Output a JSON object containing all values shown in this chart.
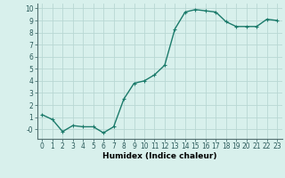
{
  "x": [
    0,
    1,
    2,
    3,
    4,
    5,
    6,
    7,
    8,
    9,
    10,
    11,
    12,
    13,
    14,
    15,
    16,
    17,
    18,
    19,
    20,
    21,
    22,
    23
  ],
  "y": [
    1.2,
    0.8,
    -0.2,
    0.3,
    0.2,
    0.2,
    -0.3,
    0.2,
    2.5,
    3.8,
    4.0,
    4.5,
    5.3,
    8.3,
    9.7,
    9.9,
    9.8,
    9.7,
    8.9,
    8.5,
    8.5,
    8.5,
    9.1,
    9.0
  ],
  "line_color": "#1a7a6a",
  "marker": "+",
  "markersize": 3,
  "linewidth": 1.0,
  "bg_color": "#d8f0ec",
  "grid_color": "#b8d8d4",
  "xlabel": "Humidex (Indice chaleur)",
  "xlim": [
    -0.5,
    23.5
  ],
  "ylim": [
    -0.8,
    10.4
  ],
  "xticks": [
    0,
    1,
    2,
    3,
    4,
    5,
    6,
    7,
    8,
    9,
    10,
    11,
    12,
    13,
    14,
    15,
    16,
    17,
    18,
    19,
    20,
    21,
    22,
    23
  ],
  "yticks": [
    0,
    1,
    2,
    3,
    4,
    5,
    6,
    7,
    8,
    9,
    10
  ],
  "ytick_labels": [
    "-0",
    "1",
    "2",
    "3",
    "4",
    "5",
    "6",
    "7",
    "8",
    "9",
    "10"
  ],
  "tick_fontsize": 5.5,
  "xlabel_fontsize": 6.5
}
